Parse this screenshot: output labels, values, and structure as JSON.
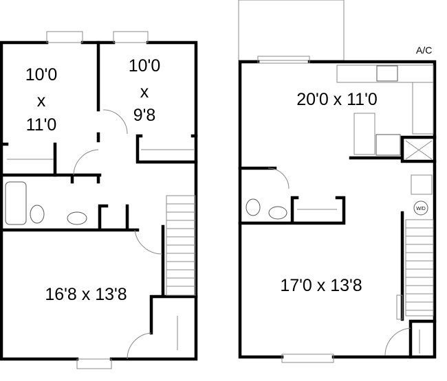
{
  "floors": [
    {
      "name": "left-floor",
      "rooms": [
        {
          "id": "bedroom-1",
          "lines": [
            "10'0",
            "x",
            "11'0"
          ]
        },
        {
          "id": "bedroom-2",
          "lines": [
            "10'0",
            "x",
            "9'8"
          ]
        },
        {
          "id": "living-room",
          "lines": [
            "16'8 x 13'8"
          ]
        }
      ]
    },
    {
      "name": "right-floor",
      "rooms": [
        {
          "id": "kitchen",
          "lines": [
            "20'0 x 11'0"
          ]
        },
        {
          "id": "family-room",
          "lines": [
            "17'0 x 13'8"
          ]
        }
      ],
      "equipment_label": "A/C",
      "washer_label": "W/D"
    }
  ]
}
